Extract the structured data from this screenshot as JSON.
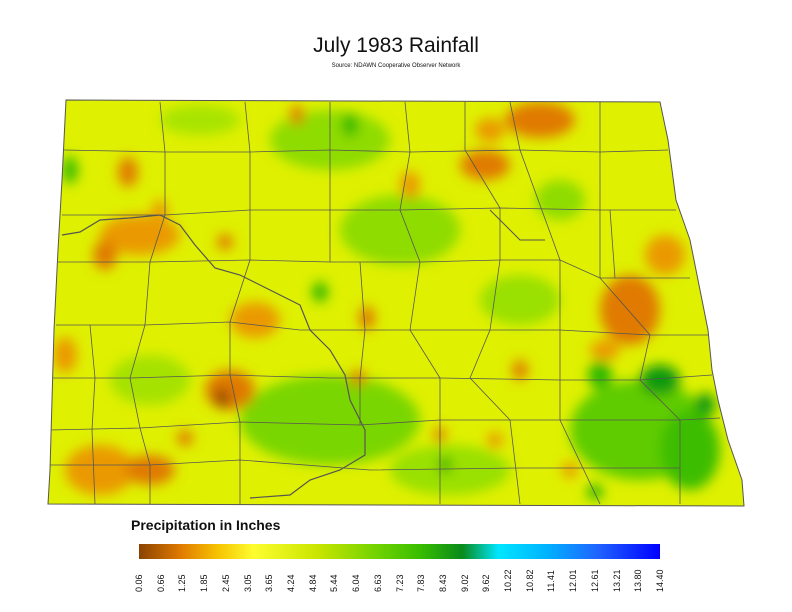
{
  "map": {
    "title": "July 1983 Rainfall",
    "subtitle": "Source: NDAWN Cooperative Observer Network",
    "state": "North Dakota",
    "colors": {
      "dry": "#e07a00",
      "moderate": "#fdfd30",
      "wet": "#38bd00",
      "very_wet": "#0a8a1a",
      "border": "#555555"
    }
  },
  "legend": {
    "title": "Precipitation in Inches",
    "ticks": [
      "0.06",
      "0.66",
      "1.25",
      "1.85",
      "2.45",
      "3.05",
      "3.65",
      "4.24",
      "4.84",
      "5.44",
      "6.04",
      "6.63",
      "7.23",
      "7.83",
      "8.43",
      "9.02",
      "9.62",
      "10.22",
      "10.82",
      "11.41",
      "12.01",
      "12.61",
      "13.21",
      "13.80",
      "14.40"
    ]
  }
}
